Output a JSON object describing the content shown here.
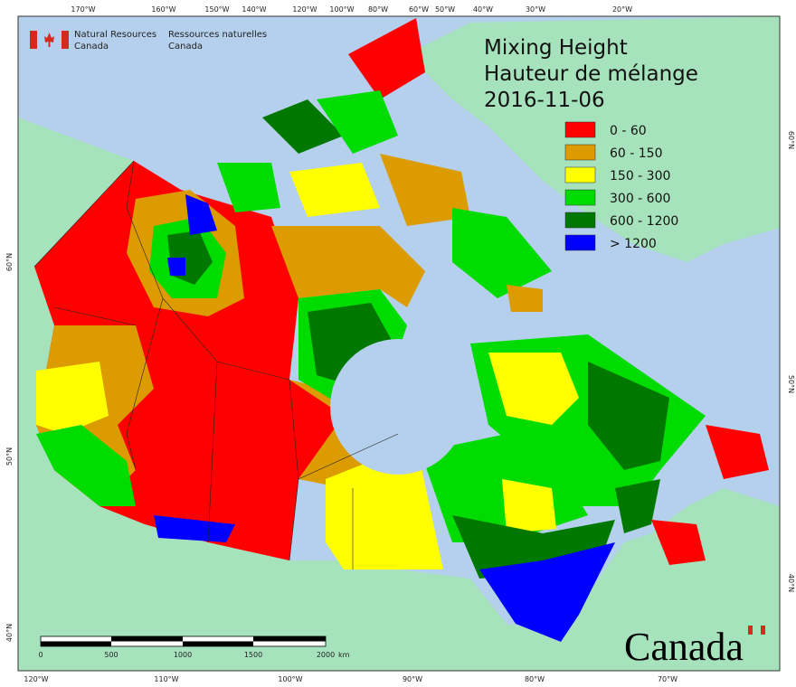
{
  "header": {
    "agency_en": [
      "Natural Resources",
      "Canada"
    ],
    "agency_fr": [
      "Ressources naturelles",
      "Canada"
    ]
  },
  "title": [
    "Mixing Height",
    "Hauteur de mélange",
    "2016-11-06"
  ],
  "legend": [
    {
      "label": "0 - 60",
      "color": "#ff0000"
    },
    {
      "label": "60 - 150",
      "color": "#dc9b00"
    },
    {
      "label": "150 - 300",
      "color": "#ffff00"
    },
    {
      "label": "300 - 600",
      "color": "#00dc00"
    },
    {
      "label": "600 - 1200",
      "color": "#007800"
    },
    {
      "label": "> 1200",
      "color": "#0000ff"
    }
  ],
  "graticule": {
    "top": [
      "170°W",
      "160°W",
      "150°W",
      "140°W",
      "120°W",
      "100°W",
      "80°W",
      "60°W",
      "50°W",
      "40°W",
      "30°W",
      "20°W"
    ],
    "bottom": [
      "120°W",
      "110°W",
      "100°W",
      "90°W",
      "80°W",
      "70°W"
    ],
    "left": [
      "60°N",
      "50°N",
      "40°N"
    ],
    "right": [
      "60°N",
      "50°N",
      "40°N"
    ]
  },
  "scale_bar": {
    "labels": [
      "0",
      "500",
      "1000",
      "1500",
      "2000"
    ],
    "unit": "km"
  },
  "wordmark": "Canada"
}
